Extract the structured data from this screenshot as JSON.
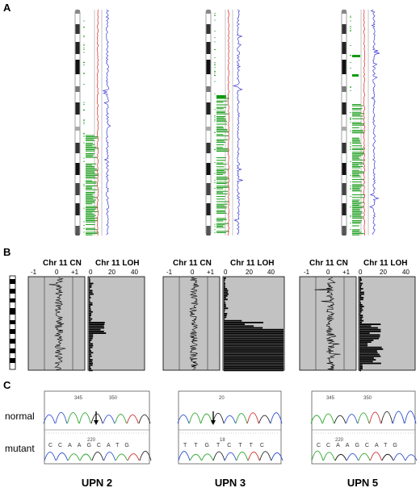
{
  "panels": {
    "a": "A",
    "b": "B",
    "c": "C"
  },
  "panel_b": {
    "cn_header": "Chr 11 CN",
    "loh_header": "Chr 11 LOH",
    "cn_ticks": [
      "-1",
      "0",
      "+1"
    ],
    "loh_ticks": [
      "0",
      "20",
      "40"
    ]
  },
  "panel_c": {
    "row_labels": [
      "normal",
      "mutant"
    ],
    "samples": [
      "UPN 2",
      "UPN 3",
      "UPN 5"
    ],
    "base_call_text": [
      "CCAAGCATG",
      "TTGTCTTC",
      "CCAAGCATG"
    ],
    "position_labels": [
      "345",
      "350",
      "220",
      "20",
      "18",
      "345",
      "350",
      "220"
    ]
  },
  "colors": {
    "loh_green": "#119a11",
    "cn_red": "#e02020",
    "cn_blue": "#3a3ad0",
    "panel_gray": "#c2c2c2",
    "trace_a": "#2aa52a",
    "trace_c": "#3050d0",
    "trace_g": "#222222",
    "trace_t": "#d02a2a"
  }
}
